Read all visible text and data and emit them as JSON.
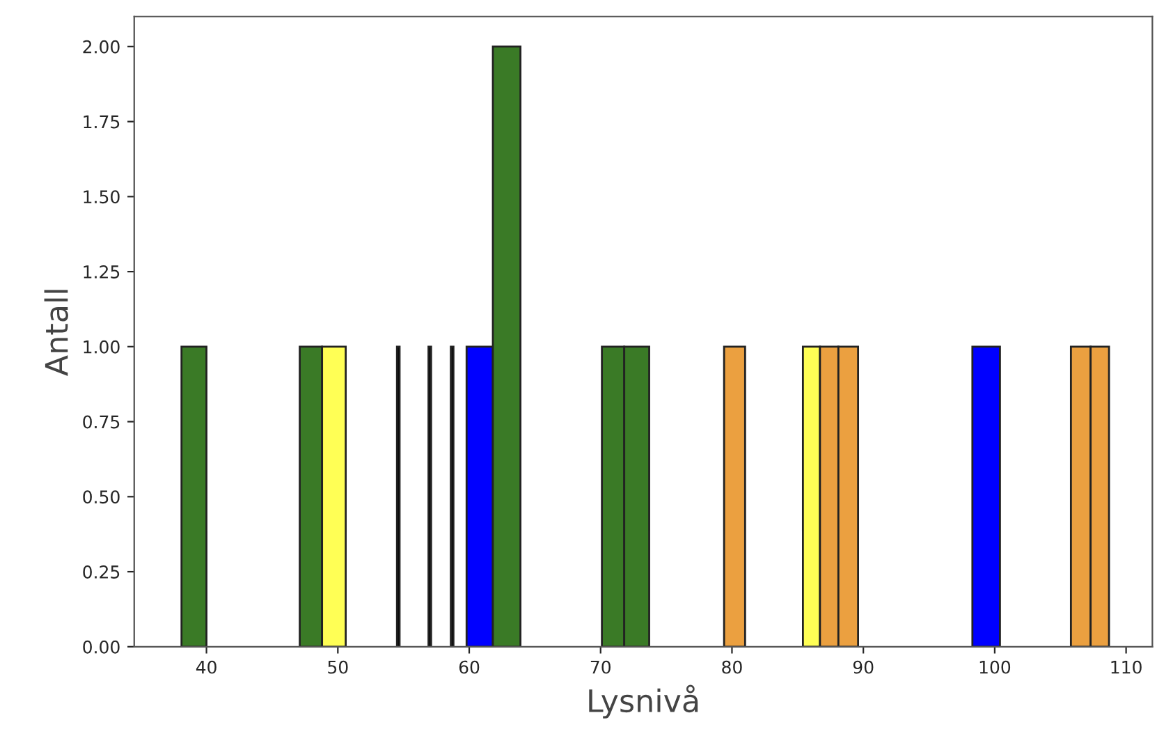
{
  "chart_data": {
    "type": "histogram",
    "xlabel": "Lysnivå",
    "ylabel": "Antall",
    "bins": [
      38.1,
      40.0,
      47.1,
      48.8,
      50.6,
      54.5,
      54.7,
      56.9,
      57.1,
      58.6,
      58.8,
      59.8,
      61.8,
      63.9,
      70.1,
      71.8,
      73.7,
      79.4,
      81.0,
      85.4,
      86.7,
      88.1,
      89.6,
      98.3,
      100.4,
      105.8,
      107.3,
      108.7
    ],
    "values": [
      1,
      0,
      1,
      1,
      0,
      1,
      0,
      1,
      0,
      1,
      0,
      1,
      2,
      0,
      1,
      1,
      0,
      1,
      0,
      1,
      1,
      1,
      0,
      1,
      0,
      1,
      1
    ],
    "colors": [
      "#3a7a26",
      null,
      "#3a7a26",
      "#ffff55",
      null,
      "#000000",
      null,
      "#000000",
      null,
      "#000000",
      null,
      "#0000ff",
      "#3a7a26",
      null,
      "#3a7a26",
      "#3a7a26",
      null,
      "#eba040",
      null,
      "#ffff55",
      "#eba040",
      "#eba040",
      null,
      "#0000ff",
      null,
      "#eba040",
      "#eba040"
    ],
    "xlim": [
      34.5,
      112
    ],
    "xticks": [
      40,
      50,
      60,
      70,
      80,
      90,
      100,
      110
    ],
    "ylim": [
      0,
      2.1
    ],
    "yticks": [
      {
        "value": 0,
        "label": "0.00"
      },
      {
        "value": 0.25,
        "label": "0.25"
      },
      {
        "value": 0.5,
        "label": "0.50"
      },
      {
        "value": 0.75,
        "label": "0.75"
      },
      {
        "value": 1,
        "label": "1.00"
      },
      {
        "value": 1.25,
        "label": "1.25"
      },
      {
        "value": 1.5,
        "label": "1.50"
      },
      {
        "value": 1.75,
        "label": "1.75"
      },
      {
        "value": 2,
        "label": "2.00"
      }
    ],
    "grid": false
  }
}
